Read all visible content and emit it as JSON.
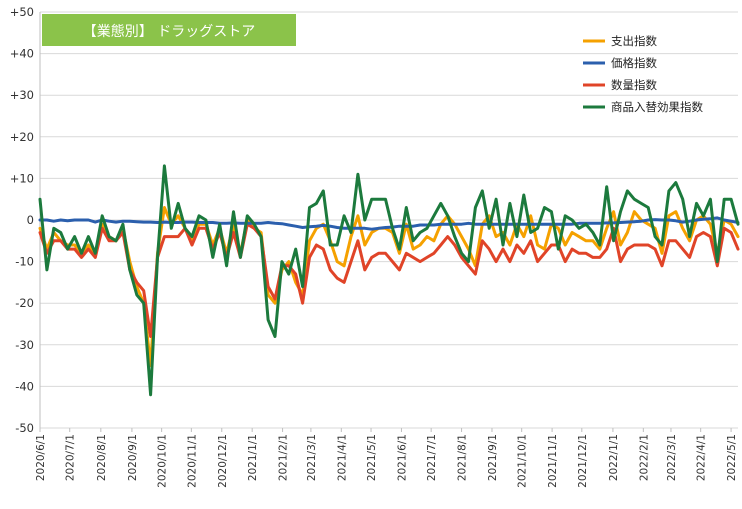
{
  "chart_data": {
    "type": "line",
    "title": "【業態別】 ドラッグストア",
    "title_box_color": "#8bc34a",
    "ylim": [
      -50,
      50
    ],
    "y_ticks": [
      {
        "value": 50,
        "label": "+50"
      },
      {
        "value": 40,
        "label": "+40"
      },
      {
        "value": 30,
        "label": "+30"
      },
      {
        "value": 20,
        "label": "+20"
      },
      {
        "value": 10,
        "label": "+10"
      },
      {
        "value": 0,
        "label": "0"
      },
      {
        "value": -10,
        "label": "-10"
      },
      {
        "value": -20,
        "label": "-20"
      },
      {
        "value": -30,
        "label": "-30"
      },
      {
        "value": -40,
        "label": "-40"
      },
      {
        "value": -50,
        "label": "-50"
      }
    ],
    "x_ticks": [
      {
        "index": 0,
        "label": "2020/6/1"
      },
      {
        "index": 4.3,
        "label": "2020/7/1"
      },
      {
        "index": 8.8,
        "label": "2020/8/1"
      },
      {
        "index": 13.3,
        "label": "2020/9/1"
      },
      {
        "index": 17.6,
        "label": "2020/10/1"
      },
      {
        "index": 21.9,
        "label": "2020/11/1"
      },
      {
        "index": 26.3,
        "label": "2020/12/1"
      },
      {
        "index": 30.7,
        "label": "2021/1/1"
      },
      {
        "index": 35.1,
        "label": "2021/2/1"
      },
      {
        "index": 39.2,
        "label": "2021/3/1"
      },
      {
        "index": 43.6,
        "label": "2021/4/1"
      },
      {
        "index": 47.9,
        "label": "2021/5/1"
      },
      {
        "index": 52.3,
        "label": "2021/6/1"
      },
      {
        "index": 56.6,
        "label": "2021/7/1"
      },
      {
        "index": 61.0,
        "label": "2021/8/1"
      },
      {
        "index": 65.4,
        "label": "2021/9/1"
      },
      {
        "index": 69.7,
        "label": "2021/10/1"
      },
      {
        "index": 74.1,
        "label": "2021/11/1"
      },
      {
        "index": 78.4,
        "label": "2021/12/1"
      },
      {
        "index": 82.9,
        "label": "2022/1/1"
      },
      {
        "index": 87.3,
        "label": "2022/2/1"
      },
      {
        "index": 91.3,
        "label": "2022/3/1"
      },
      {
        "index": 95.6,
        "label": "2022/4/1"
      },
      {
        "index": 100,
        "label": "2022/5/1"
      }
    ],
    "series": [
      {
        "name": "支出指数",
        "color": "#f5a100",
        "values": [
          -2,
          -7,
          -3,
          -5,
          -6,
          -6,
          -8,
          -6,
          -8,
          -1,
          -4,
          -5,
          -2,
          -10,
          -16,
          -20,
          -35,
          -8,
          3,
          -1,
          1,
          -2,
          -5,
          -1,
          -1,
          -6,
          -2,
          -8,
          -1,
          -8,
          0,
          -2,
          -3,
          -18,
          -20,
          -12,
          -10,
          -15,
          -18,
          -5,
          -2,
          -1,
          -5,
          -10,
          -11,
          -4,
          1,
          -6,
          -3,
          -2,
          -2,
          -3,
          -8,
          -1,
          -7,
          -6,
          -4,
          -5,
          -1,
          1,
          -1,
          -4,
          -7,
          -11,
          -1,
          1,
          -4,
          -3,
          -6,
          -1,
          -4,
          1,
          -6,
          -7,
          -1,
          -2,
          -6,
          -3,
          -4,
          -5,
          -5,
          -7,
          -2,
          2,
          -6,
          -3,
          2,
          0,
          -1,
          -2,
          -8,
          1,
          2,
          -2,
          -5,
          0,
          1,
          -1,
          -8,
          0,
          -1,
          -4
        ]
      },
      {
        "name": "価格指数",
        "color": "#2b5fad",
        "values": [
          0,
          0,
          -0.3,
          0,
          -0.2,
          0,
          0,
          0,
          -0.5,
          0,
          -0.3,
          -0.5,
          -0.3,
          -0.3,
          -0.4,
          -0.5,
          -0.5,
          -0.6,
          -0.5,
          -0.6,
          -0.6,
          -0.5,
          -0.5,
          -0.6,
          -0.6,
          -0.6,
          -0.8,
          -0.8,
          -0.7,
          -0.8,
          -0.8,
          -0.8,
          -0.8,
          -0.6,
          -0.8,
          -0.9,
          -1.2,
          -1.5,
          -1.8,
          -1.6,
          -1.5,
          -1.3,
          -1.5,
          -1.8,
          -2,
          -2,
          -2,
          -2,
          -2.2,
          -2,
          -1.8,
          -1.7,
          -1.5,
          -1.5,
          -1.5,
          -1.2,
          -1.2,
          -1.2,
          -1,
          -1,
          -1,
          -1,
          -0.8,
          -1,
          -1,
          -1,
          -1,
          -1,
          -1,
          -1,
          -1,
          -1,
          -1,
          -1,
          -1,
          -1,
          -1,
          -1,
          -0.8,
          -0.8,
          -0.8,
          -0.8,
          -0.7,
          -0.7,
          -0.6,
          -0.5,
          -0.4,
          -0.3,
          0,
          0.1,
          0,
          0,
          -0.2,
          -0.5,
          -0.3,
          0,
          0.2,
          0.3,
          0.5,
          0,
          -0.3,
          -0.6
        ]
      },
      {
        "name": "数量指数",
        "color": "#e04428",
        "values": [
          -3,
          -8,
          -5,
          -5,
          -7,
          -7,
          -9,
          -7,
          -9,
          -2,
          -5,
          -5,
          -3,
          -12,
          -15,
          -17,
          -28,
          -9,
          -4,
          -4,
          -4,
          -2,
          -6,
          -2,
          -2,
          -7,
          -3,
          -9,
          -3,
          -9,
          -1,
          -2,
          -4,
          -16,
          -19,
          -11,
          -11,
          -13,
          -20,
          -9,
          -6,
          -7,
          -12,
          -14,
          -15,
          -10,
          -5,
          -12,
          -9,
          -8,
          -8,
          -10,
          -12,
          -8,
          -9,
          -10,
          -9,
          -8,
          -6,
          -4,
          -6,
          -9,
          -11,
          -13,
          -5,
          -7,
          -10,
          -7,
          -10,
          -6,
          -8,
          -5,
          -10,
          -8,
          -6,
          -6,
          -10,
          -7,
          -8,
          -8,
          -9,
          -9,
          -7,
          -2,
          -10,
          -7,
          -6,
          -6,
          -6,
          -7,
          -11,
          -5,
          -5,
          -7,
          -9,
          -4,
          -3,
          -4,
          -11,
          -2,
          -3,
          -7
        ]
      },
      {
        "name": "商品入替効果指数",
        "color": "#1c7a3d",
        "values": [
          5,
          -12,
          -2,
          -3,
          -7,
          -4,
          -8,
          -4,
          -8,
          1,
          -4,
          -5,
          -1,
          -12,
          -18,
          -20,
          -42,
          -9,
          13,
          -2,
          4,
          -2,
          -4,
          1,
          0,
          -9,
          -1,
          -11,
          2,
          -9,
          1,
          -1,
          -4,
          -24,
          -28,
          -10,
          -13,
          -7,
          -16,
          3,
          4,
          7,
          -6,
          -6,
          1,
          -3,
          11,
          0,
          5,
          5,
          5,
          -2,
          -7,
          3,
          -5,
          -3,
          -2,
          1,
          4,
          1,
          -4,
          -8,
          -10,
          3,
          7,
          -2,
          5,
          -6,
          4,
          -4,
          6,
          -3,
          -2,
          3,
          2,
          -7,
          1,
          0,
          -2,
          -1,
          -3,
          -6,
          8,
          -5,
          2,
          7,
          5,
          4,
          3,
          -4,
          -6,
          7,
          9,
          5,
          -4,
          4,
          1,
          5,
          -10,
          5,
          5,
          -1
        ]
      }
    ],
    "legend_position": "top-right",
    "grid": true
  }
}
